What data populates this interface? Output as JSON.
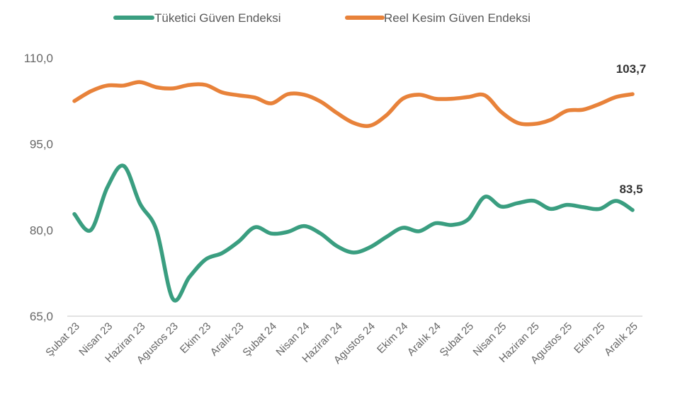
{
  "chart_data": {
    "type": "line",
    "title": "",
    "xlabel": "",
    "ylabel": "",
    "ylim": [
      65,
      110
    ],
    "yticks": [
      "65,0",
      "80,0",
      "95,0",
      "110,0"
    ],
    "ytick_values": [
      65,
      80,
      95,
      110
    ],
    "grid": false,
    "legend_position": "top",
    "x_tick_labels": [
      "Şubat 23",
      "Nisan 23",
      "Haziran 23",
      "Agustos 23",
      "Ekim 23",
      "Aralık 23",
      "Şubat 24",
      "Nisan 24",
      "Haziran 24",
      "Agustos 24",
      "Ekim 24",
      "Aralık 24",
      "Şubat 25",
      "Nisan 25",
      "Haziran 25",
      "Agustos 25",
      "Ekim 25",
      "Aralık 25"
    ],
    "series": [
      {
        "name": "Tüketici Güven Endeksi",
        "color": "#3a9e80",
        "last_label": "83,5",
        "values": [
          82.8,
          80.0,
          87.4,
          91.2,
          84.6,
          80.0,
          68.0,
          71.8,
          74.9,
          76.0,
          78.0,
          80.5,
          79.4,
          79.7,
          80.7,
          79.4,
          77.2,
          76.1,
          77.0,
          78.8,
          80.4,
          79.8,
          81.2,
          80.9,
          81.9,
          85.8,
          84.1,
          84.7,
          85.1,
          83.7,
          84.4,
          84.0,
          83.7,
          85.1,
          83.5
        ]
      },
      {
        "name": "Reel Kesim Güven Endeksi",
        "color": "#e8823a",
        "last_label": "103,7",
        "values": [
          102.5,
          104.2,
          105.2,
          105.2,
          105.8,
          104.9,
          104.7,
          105.3,
          105.3,
          104.0,
          103.5,
          103.1,
          102.1,
          103.7,
          103.6,
          102.4,
          100.4,
          98.7,
          98.2,
          100.0,
          102.9,
          103.6,
          102.9,
          102.9,
          103.2,
          103.5,
          100.6,
          98.7,
          98.5,
          99.2,
          100.8,
          101.0,
          102.0,
          103.2,
          103.7
        ]
      }
    ]
  }
}
